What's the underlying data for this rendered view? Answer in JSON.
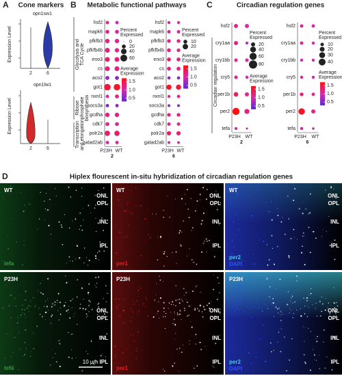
{
  "panels": {
    "a": {
      "letter": "A",
      "title": "Cone markers",
      "plots": [
        {
          "gene": "opn1sw1",
          "ylabel": "Expression Level",
          "groups": [
            "2",
            "6"
          ]
        },
        {
          "gene": "opn1lw1",
          "ylabel": "Expression Level",
          "groups": [
            "2",
            "6"
          ]
        }
      ]
    },
    "b": {
      "letter": "B",
      "title": "Metabolic functional pathways",
      "pathways": [
        [
          "Glycolysis and",
          "TCA Cycle"
        ],
        [
          "Ribose",
          "phosphate",
          "biosynthesis"
        ],
        [
          "Transcription",
          "and elongation"
        ]
      ],
      "plots": [
        {
          "genes": [
            "hsf2",
            "mapk6",
            "pfkfb3",
            "pfkfb4b",
            "eno3",
            "cs",
            "aco2",
            "got1",
            "nxnl1",
            "socs3a",
            "gcdha",
            "cdk7",
            "polr2a",
            "gatad2ab"
          ],
          "groups": [
            "P23H",
            "WT"
          ],
          "age": "2",
          "percent": [
            [
              15,
              15
            ],
            [
              20,
              20
            ],
            [
              25,
              25
            ],
            [
              30,
              25
            ],
            [
              30,
              30
            ],
            [
              30,
              30
            ],
            [
              20,
              20
            ],
            [
              55,
              55
            ],
            [
              15,
              20
            ],
            [
              15,
              15
            ],
            [
              25,
              25
            ],
            [
              20,
              20
            ],
            [
              35,
              35
            ],
            [
              15,
              15
            ]
          ],
          "average": [
            [
              1.1,
              1.0
            ],
            [
              1.1,
              1.1
            ],
            [
              1.2,
              1.1
            ],
            [
              1.2,
              1.1
            ],
            [
              1.3,
              1.2
            ],
            [
              1.2,
              1.2
            ],
            [
              0.6,
              0.5
            ],
            [
              1.5,
              1.6
            ],
            [
              1.0,
              1.2
            ],
            [
              0.5,
              0.6
            ],
            [
              1.2,
              1.2
            ],
            [
              1.1,
              1.1
            ],
            [
              1.3,
              1.3
            ],
            [
              1.0,
              1.0
            ]
          ],
          "size_legend": {
            "title": [
              "Percent",
              "Expressed"
            ],
            "values": [
              0,
              20,
              40,
              60
            ]
          },
          "color_legend": {
            "title": [
              "Average",
              "Expression"
            ],
            "ticks": [
              1.5,
              {
                "value": 1,
                "label": "1.0"
              },
              0.5
            ],
            "clim": [
              0.3,
              1.7
            ]
          }
        },
        {
          "genes": [
            "hsf2",
            "mapk6",
            "pfkfb3",
            "pfkfb4b",
            "eno3",
            "cs",
            "aco2",
            "got1",
            "nxnl1",
            "socs3a",
            "gcdha",
            "cdk7",
            "polr2a",
            "gatad2ab"
          ],
          "groups": [
            "P23H",
            "WT"
          ],
          "age": "6",
          "percent": [
            [
              6,
              6
            ],
            [
              8,
              8
            ],
            [
              9,
              9
            ],
            [
              10,
              9
            ],
            [
              10,
              10
            ],
            [
              10,
              10
            ],
            [
              7,
              7
            ],
            [
              18,
              18
            ],
            [
              6,
              7
            ],
            [
              5,
              5
            ],
            [
              9,
              9
            ],
            [
              8,
              8
            ],
            [
              12,
              12
            ],
            [
              5,
              5
            ]
          ],
          "average": [
            [
              1.1,
              1.0
            ],
            [
              1.1,
              1.1
            ],
            [
              1.2,
              1.2
            ],
            [
              1.2,
              1.1
            ],
            [
              1.3,
              1.2
            ],
            [
              1.2,
              1.2
            ],
            [
              0.6,
              0.5
            ],
            [
              1.6,
              1.5
            ],
            [
              1.1,
              1.2
            ],
            [
              0.5,
              0.5
            ],
            [
              1.2,
              1.2
            ],
            [
              1.1,
              1.1
            ],
            [
              1.3,
              1.3
            ],
            [
              1.0,
              1.0
            ]
          ],
          "size_legend": {
            "title": [
              "Percent",
              "Expressed"
            ],
            "values": [
              10,
              20
            ]
          },
          "color_legend": {
            "title": [
              "Average",
              "Expression"
            ],
            "ticks": [
              1.5,
              {
                "value": 1,
                "label": "1.0"
              },
              0.5
            ],
            "clim": [
              0.3,
              1.7
            ]
          }
        }
      ]
    },
    "c": {
      "letter": "C",
      "title": "Circadian regulation genes",
      "pathways": [
        [
          "Circadian regulation"
        ]
      ],
      "plots": [
        {
          "genes": [
            "hsf2",
            "cry1aa",
            "cry1bb",
            "cry5",
            "per1b",
            "per2",
            "tefa"
          ],
          "groups": [
            "P23H",
            "WT"
          ],
          "age": "2",
          "percent": [
            [
              20,
              20
            ],
            [
              20,
              10
            ],
            [
              15,
              15
            ],
            [
              15,
              12
            ],
            [
              25,
              20
            ],
            [
              60,
              30
            ],
            [
              10,
              5
            ]
          ],
          "average": [
            [
              1.1,
              1.0
            ],
            [
              1.2,
              0.8
            ],
            [
              1.0,
              1.0
            ],
            [
              1.1,
              1.0
            ],
            [
              1.3,
              1.1
            ],
            [
              1.7,
              1.2
            ],
            [
              0.9,
              0.7
            ]
          ],
          "size_legend": {
            "title": [
              "Percent",
              "Expressed"
            ],
            "values": [
              20,
              40,
              60,
              80
            ]
          },
          "color_legend": {
            "title": [
              "Average",
              "Expression"
            ],
            "ticks": [
              1.5,
              {
                "value": 1,
                "label": "1.0"
              },
              0.5
            ],
            "clim": [
              0.3,
              1.7
            ]
          }
        },
        {
          "genes": [
            "hsf2",
            "cry1aa",
            "cry1bb",
            "cry5",
            "per1b",
            "per2",
            "tefa"
          ],
          "groups": [
            "P23H",
            "WT"
          ],
          "age": "6",
          "percent": [
            [
              10,
              10
            ],
            [
              10,
              8
            ],
            [
              8,
              8
            ],
            [
              8,
              8
            ],
            [
              12,
              10
            ],
            [
              35,
              15
            ],
            [
              8,
              5
            ]
          ],
          "average": [
            [
              1.1,
              1.0
            ],
            [
              1.1,
              1.0
            ],
            [
              1.0,
              1.0
            ],
            [
              1.1,
              1.0
            ],
            [
              1.2,
              1.1
            ],
            [
              1.6,
              1.1
            ],
            [
              0.9,
              0.8
            ]
          ],
          "size_legend": {
            "title": [
              "Percent",
              "Expressed"
            ],
            "values": [
              10,
              20,
              30,
              40
            ]
          },
          "color_legend": {
            "title": [
              "Average",
              "Expression"
            ],
            "ticks": [
              1.5,
              {
                "value": 1,
                "label": "1.0"
              },
              0.5
            ],
            "clim": [
              0.3,
              1.7
            ]
          }
        }
      ]
    },
    "d": {
      "letter": "D",
      "title": "Hiplex flourescent in-situ hybridization of circadian regulation genes",
      "rows": [
        "WT",
        "P23H"
      ],
      "channels": [
        "tefa",
        "per1",
        "per2"
      ],
      "counterstain": "DAPI",
      "layers": [
        "ONL",
        "OPL",
        "INL",
        "IPL"
      ],
      "scale_bar": "10 μm"
    }
  }
}
